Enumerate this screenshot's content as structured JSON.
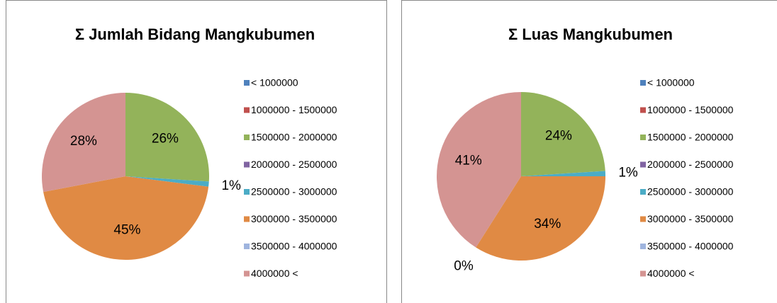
{
  "chart_data": [
    {
      "type": "pie",
      "title": "Σ Jumlah Bidang Mangkubumen",
      "categories": [
        "< 1000000",
        "1000000 - 1500000",
        "1500000 - 2000000",
        "2000000 - 2500000",
        "2500000 - 3000000",
        "3000000 - 3500000",
        "3500000 - 4000000",
        "4000000 <"
      ],
      "values": [
        0,
        0,
        26,
        0,
        1,
        45,
        0,
        28
      ],
      "value_labels": [
        null,
        null,
        "26%",
        null,
        "1%",
        "45%",
        null,
        "28%"
      ],
      "colors": [
        "#4f81bd",
        "#c0504d",
        "#93b35a",
        "#8064a2",
        "#4bacc6",
        "#e08a44",
        "#9fb4de",
        "#d49492"
      ],
      "legend": "right"
    },
    {
      "type": "pie",
      "title": "Σ Luas Mangkubumen",
      "categories": [
        "< 1000000",
        "1000000 - 1500000",
        "1500000 - 2000000",
        "2000000 - 2500000",
        "2500000 - 3000000",
        "3000000 - 3500000",
        "3500000 - 4000000",
        "4000000 <"
      ],
      "values": [
        0,
        0,
        24,
        0,
        1,
        34,
        0,
        41
      ],
      "value_labels": [
        null,
        null,
        "24%",
        null,
        "1%",
        "34%",
        "0%",
        "41%"
      ],
      "colors": [
        "#4f81bd",
        "#c0504d",
        "#93b35a",
        "#8064a2",
        "#4bacc6",
        "#e08a44",
        "#9fb4de",
        "#d49492"
      ],
      "legend": "right"
    }
  ]
}
